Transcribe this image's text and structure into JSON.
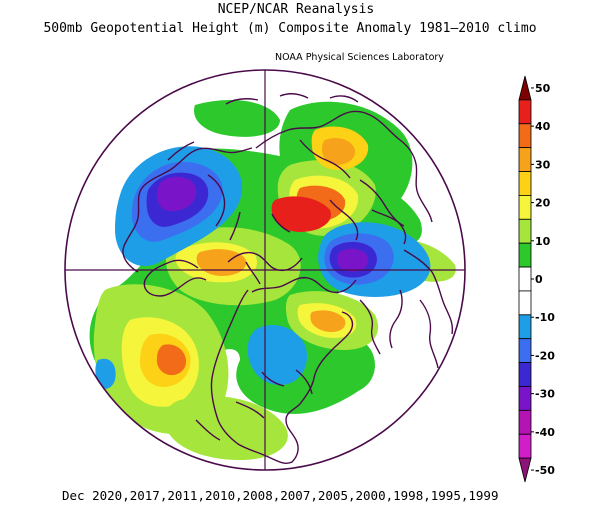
{
  "header": {
    "title_line1": "NCEP/NCAR Reanalysis",
    "title_line2": "500mb Geopotential Height (m) Composite Anomaly 1981–2010 climo",
    "credit": "NOAA Physical Sciences Laboratory"
  },
  "footer": {
    "dates": "Dec 2020,2017,2011,2010,2008,2007,2005,2000,1998,1995,1999"
  },
  "map": {
    "projection": "north polar stereographic",
    "variable": "500mb geopotential height anomaly",
    "units": "m"
  },
  "colorbar": {
    "levels": [
      "50",
      "40",
      "30",
      "20",
      "10",
      "0",
      "-10",
      "-20",
      "-30",
      "-40",
      "-50"
    ],
    "colors": [
      "#7f0000",
      "#e8201c",
      "#f26b18",
      "#f7a21b",
      "#fcd116",
      "#f5f53c",
      "#a6e63c",
      "#2cc82c",
      "#ffffff",
      "#ffffff",
      "#1e9ee6",
      "#3c6ef0",
      "#3c28d2",
      "#7a14c8",
      "#b414b4",
      "#d21ec8",
      "#8c1478"
    ]
  }
}
